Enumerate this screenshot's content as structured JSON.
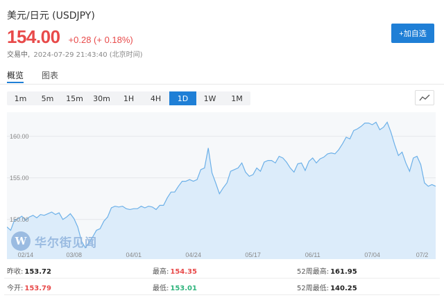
{
  "header": {
    "title": "美元/日元 (USDJPY)",
    "price": "154.00",
    "change": "+0.28 (+ 0.18%)",
    "status": "交易中,",
    "timestamp": "2024-07-29 21:43:40 (北京时间)",
    "add_button": "+加自选"
  },
  "tabs": [
    {
      "label": "概览",
      "active": true
    },
    {
      "label": "图表",
      "active": false
    }
  ],
  "periods": [
    "1m",
    "5m",
    "15m",
    "30m",
    "1H",
    "4H",
    "1D",
    "1W",
    "1M"
  ],
  "active_period": "1D",
  "watermark": {
    "logo_letter": "W",
    "text": "华尔街见闻"
  },
  "stats": {
    "prev_close_label": "昨收:",
    "prev_close": "153.72",
    "high_label": "最高:",
    "high": "154.35",
    "wk52_high_label": "52周最高:",
    "wk52_high": "161.95",
    "open_label": "今开:",
    "open": "153.79",
    "low_label": "最低:",
    "low": "153.01",
    "wk52_low_label": "52周最低:",
    "wk52_low": "140.25"
  },
  "colors": {
    "up": "#e84a4a",
    "down": "#2fb47c",
    "accent": "#1f7fd6",
    "line": "#6cb0e8",
    "fill": "#dcecfa"
  },
  "chart_data": {
    "type": "area",
    "ylim": [
      146.4,
      162.9
    ],
    "yticks": [
      "160.00",
      "155.00",
      "150.00"
    ],
    "ytick_values": [
      160,
      155,
      150
    ],
    "xticks": [
      "02/14",
      "03/08",
      "04/01",
      "04/24",
      "05/17",
      "06/11",
      "07/04",
      "07/2"
    ],
    "xtick_index": [
      5,
      18,
      34,
      50,
      66,
      82,
      98,
      113
    ],
    "values": [
      149.1,
      148.7,
      149.9,
      150.1,
      150.4,
      149.9,
      150.3,
      150.5,
      150.2,
      150.6,
      150.5,
      150.7,
      150.9,
      150.6,
      150.8,
      150.0,
      150.3,
      150.7,
      150.1,
      149.1,
      147.4,
      146.6,
      147.2,
      147.9,
      148.7,
      148.9,
      149.8,
      150.3,
      151.4,
      151.6,
      151.5,
      151.6,
      151.3,
      151.2,
      151.3,
      151.3,
      151.6,
      151.4,
      151.6,
      151.5,
      151.2,
      151.7,
      151.7,
      152.6,
      153.3,
      153.3,
      154.0,
      154.6,
      154.6,
      154.8,
      154.6,
      154.8,
      156.0,
      156.2,
      158.6,
      155.6,
      154.4,
      153.1,
      153.8,
      154.4,
      155.8,
      156.0,
      156.2,
      156.8,
      155.7,
      155.2,
      155.4,
      156.2,
      155.8,
      156.9,
      157.1,
      157.1,
      156.8,
      157.6,
      157.4,
      156.9,
      156.2,
      155.7,
      156.7,
      156.8,
      155.9,
      157.0,
      157.4,
      156.8,
      157.3,
      157.5,
      157.9,
      158.0,
      157.9,
      158.4,
      159.1,
      159.9,
      159.7,
      160.7,
      160.9,
      161.2,
      161.6,
      161.6,
      161.4,
      161.7,
      160.8,
      161.1,
      161.7,
      160.5,
      159.0,
      157.7,
      158.1,
      156.8,
      155.8,
      157.4,
      157.6,
      156.6,
      154.4,
      154.0,
      154.2,
      154.0
    ]
  }
}
